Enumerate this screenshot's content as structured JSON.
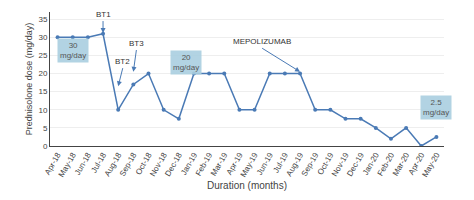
{
  "chart_data": {
    "type": "line",
    "xlabel": "Duration (months)",
    "ylabel": "Prednisolone dose (mg/day)",
    "categories": [
      "Apr-18",
      "May-18",
      "Jun-18",
      "Jul-18",
      "Aug-18",
      "Sep-18",
      "Oct-18",
      "Nov-18",
      "Dec-18",
      "Jan-19",
      "Feb-19",
      "Mar-19",
      "Apr-19",
      "May-19",
      "Jun-19",
      "Jul-19",
      "Aug-19",
      "Sep-19",
      "Oct-19",
      "Nov-19",
      "Dec-19",
      "Jan-20",
      "Feb-20",
      "Mar-20",
      "Apr-20",
      "May-20"
    ],
    "values": [
      30,
      30,
      30,
      31,
      10,
      17,
      20,
      10,
      7.5,
      20,
      20,
      20,
      10,
      10,
      20,
      20,
      20,
      10,
      10,
      7.5,
      7.5,
      5,
      2,
      5,
      0,
      2.5
    ],
    "color": "#4a7ab5",
    "marker": "circle",
    "line_style": "solid",
    "ylim": [
      0,
      37
    ],
    "yticks": [
      0,
      5,
      10,
      15,
      20,
      25,
      30,
      35
    ],
    "grid": true,
    "annotations": [
      {
        "text": "30\nmg/day",
        "x": 1.0,
        "y": 26.5,
        "color": "#aacfe0"
      },
      {
        "text": "20\nmg/day",
        "x": 8.5,
        "y": 23.0,
        "color": "#aacfe0"
      },
      {
        "text": "2.5\nmg/day",
        "x": 25.0,
        "y": 10.5,
        "color": "#aacfe0"
      },
      {
        "text": "BT1",
        "x": 3,
        "y": 31.2,
        "text_x": 3,
        "text_y": 34.5
      },
      {
        "text": "BT2",
        "x": 4,
        "y": 16.5,
        "text_x": 4.3,
        "text_y": 21.5
      },
      {
        "text": "BT3",
        "x": 5,
        "y": 20.5,
        "text_x": 5.2,
        "text_y": 26.5
      },
      {
        "text": "MEPOLIZUMAB",
        "x": 16,
        "y": 20.5,
        "text_x": 13.5,
        "text_y": 27
      }
    ]
  }
}
